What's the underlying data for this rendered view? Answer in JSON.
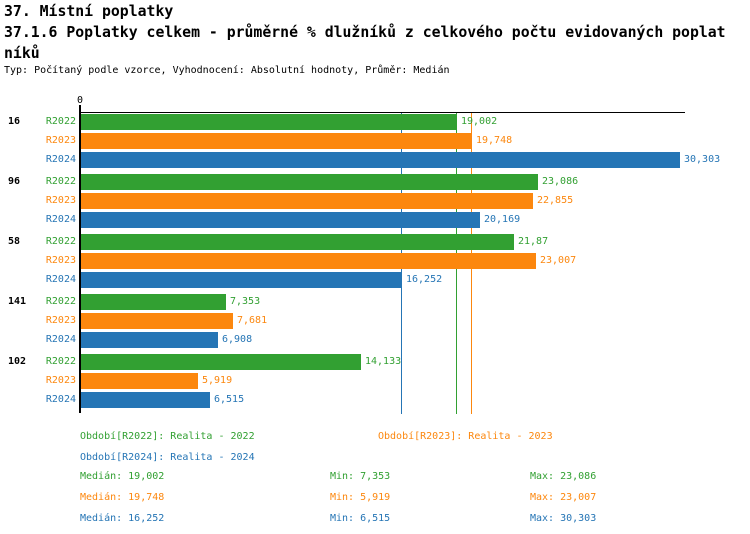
{
  "header": {
    "line1": "37. Místní poplatky",
    "line2": "37.1.6 Poplatky celkem - průměrné % dlužníků z celkového počtu evidovaných poplat",
    "line3": "níků",
    "meta": "Typ: Počítaný podle vzorce, Vyhodnocení: Absolutní hodnoty, Průměr: Medián"
  },
  "colors": {
    "r2022": "#32A032",
    "r2023": "#FC870E",
    "r2024": "#2575B5",
    "axis": "#000000"
  },
  "chart_data": {
    "type": "bar",
    "orientation": "horizontal",
    "title": "37.1.6 Poplatky celkem - průměrné % dlužníků z celkového počtu evidovaných poplatníků",
    "axis_origin_label": "0",
    "xlim": [
      0,
      30.58
    ],
    "grid": "off",
    "series_names": [
      "R2022",
      "R2023",
      "R2024"
    ],
    "groups": [
      {
        "label": "16",
        "values": [
          19.002,
          19.748,
          30.303
        ],
        "display": [
          "19,002",
          "19,748",
          "30,303"
        ]
      },
      {
        "label": "96",
        "values": [
          23.086,
          22.855,
          20.169
        ],
        "display": [
          "23,086",
          "22,855",
          "20,169"
        ]
      },
      {
        "label": "58",
        "values": [
          21.87,
          23.007,
          16.252
        ],
        "display": [
          "21,87",
          "23,007",
          "16,252"
        ]
      },
      {
        "label": "141",
        "values": [
          7.353,
          7.681,
          6.908
        ],
        "display": [
          "7,353",
          "7,681",
          "6,908"
        ]
      },
      {
        "label": "102",
        "values": [
          14.133,
          5.919,
          6.515
        ],
        "display": [
          "14,133",
          "5,919",
          "6,515"
        ]
      }
    ],
    "median_lines": [
      {
        "series": "r2022",
        "value": 19.002
      },
      {
        "series": "r2023",
        "value": 19.748
      },
      {
        "series": "r2024",
        "value": 16.252
      }
    ]
  },
  "legend": [
    {
      "series": "r2022",
      "label": "Období[R2022]: Realita - 2022"
    },
    {
      "series": "r2023",
      "label": "Období[R2023]: Realita - 2023"
    },
    {
      "series": "r2024",
      "label": "Období[R2024]: Realita - 2024"
    }
  ],
  "stats": [
    {
      "series": "r2022",
      "median": "Medián: 19,002",
      "min": "Min: 7,353",
      "max": "Max: 23,086"
    },
    {
      "series": "r2023",
      "median": "Medián: 19,748",
      "min": "Min: 5,919",
      "max": "Max: 23,007"
    },
    {
      "series": "r2024",
      "median": "Medián: 16,252",
      "min": "Min: 6,515",
      "max": "Max: 30,303"
    }
  ]
}
